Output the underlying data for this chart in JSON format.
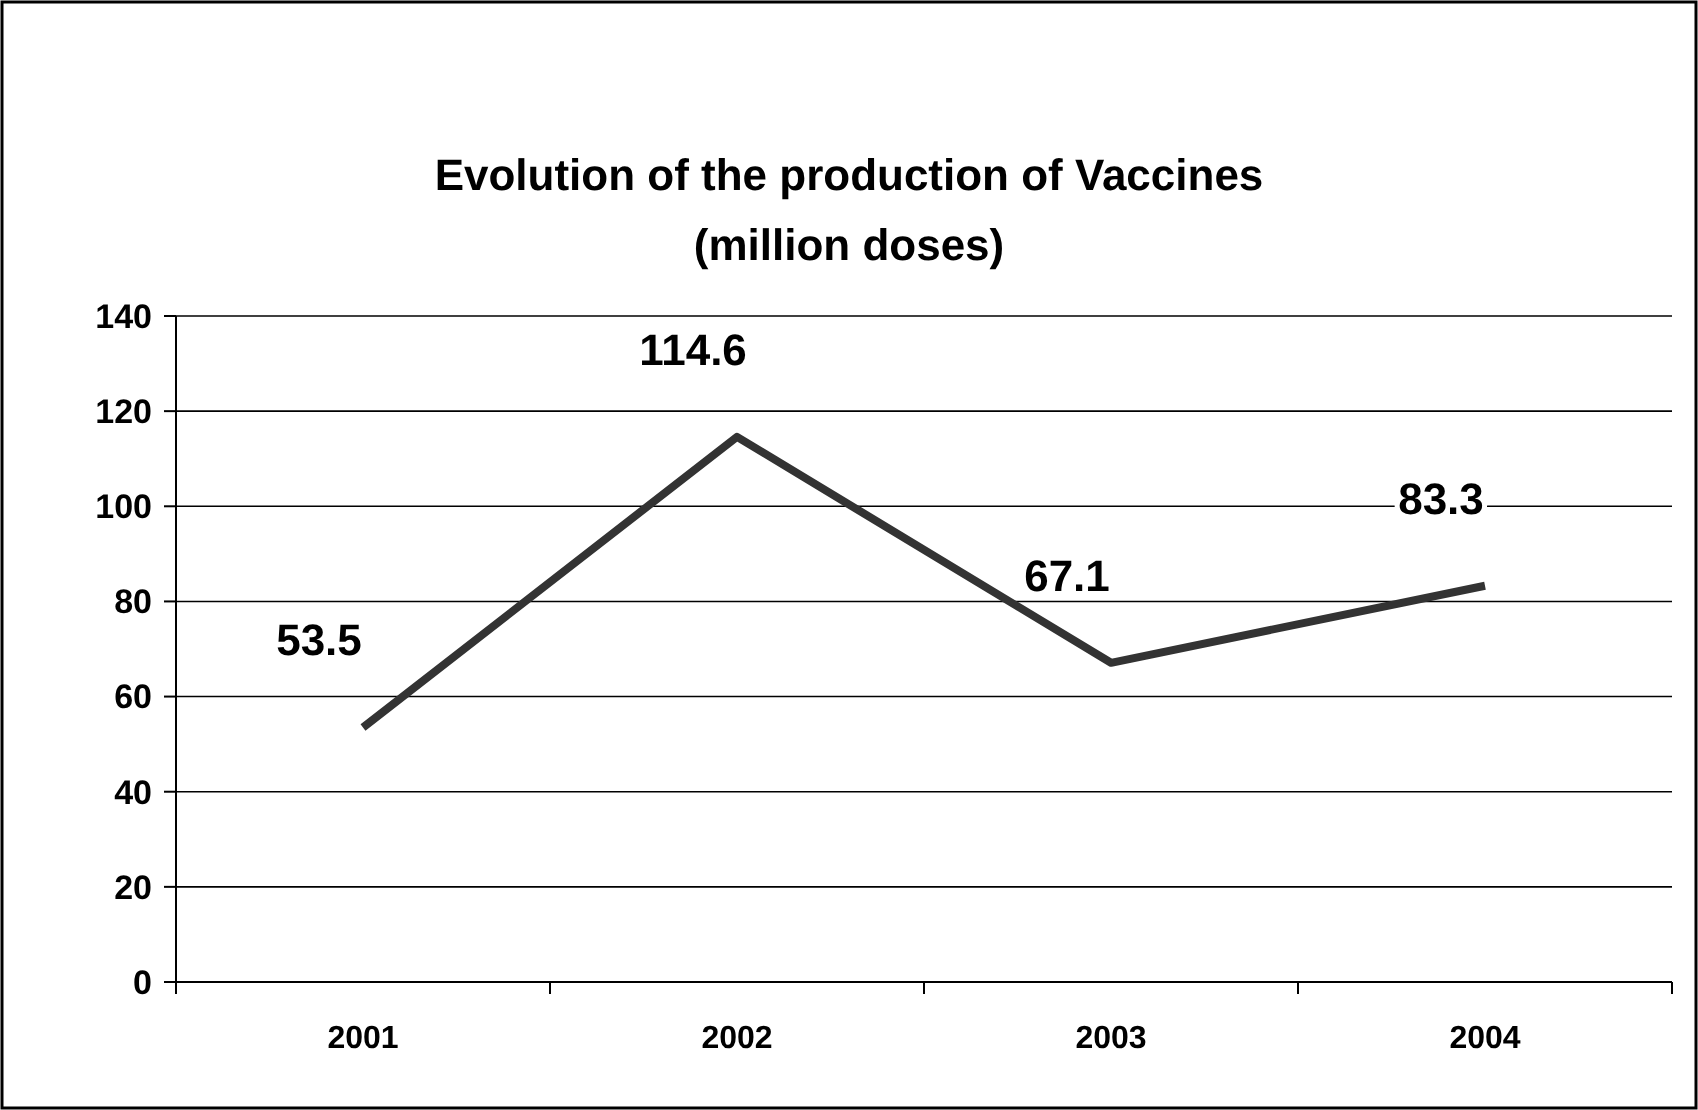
{
  "chart_data": {
    "type": "line",
    "title": "Evolution of the production of Vaccines",
    "subtitle": "(million doses)",
    "categories": [
      "2001",
      "2002",
      "2003",
      "2004"
    ],
    "series": [
      {
        "color": "#333333",
        "values": [
          53.5,
          114.6,
          67.1,
          83.3
        ]
      }
    ],
    "ylim": [
      0,
      140
    ],
    "yticks": [
      0,
      20,
      40,
      60,
      80,
      100,
      120,
      140
    ],
    "grid": "y",
    "data_labels": true,
    "marker": "none",
    "line_style": "solid"
  }
}
